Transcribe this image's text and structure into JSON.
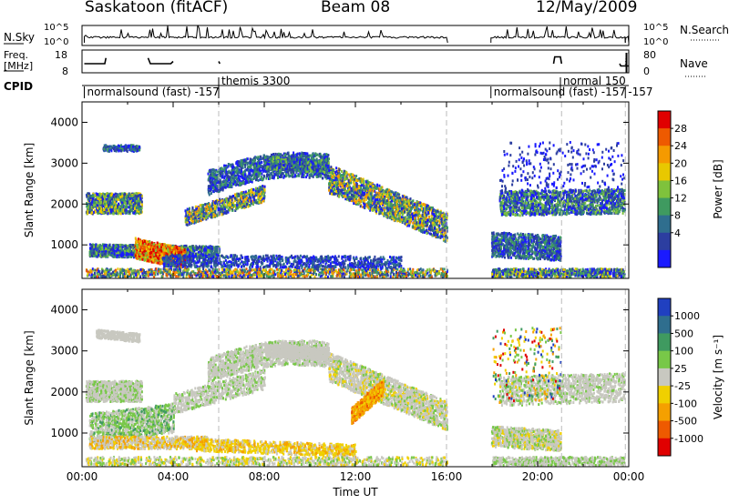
{
  "header": {
    "station": "Saskatoon (fitACF)",
    "beam": "Beam 08",
    "date": "12/May/2009"
  },
  "chart_data": [
    {
      "type": "line",
      "name": "sky-noise-panel",
      "left_label": [
        "N.Sky"
      ],
      "right_label": [
        "N.Search"
      ],
      "left_ticks": [
        "10^5",
        "10^0"
      ],
      "right_ticks": [
        "10^5",
        "10^0"
      ],
      "segments_hours": [
        [
          0.1,
          16.05
        ],
        [
          17.95,
          23.85
        ],
        [
          23.85,
          24.0
        ]
      ]
    },
    {
      "type": "line",
      "name": "frequency-panel",
      "left_label": [
        "Freq.",
        "[MHz]"
      ],
      "right_label": [
        "Nave"
      ],
      "left_ticks": [
        "18",
        "8"
      ],
      "right_ticks": [
        "80",
        "0"
      ],
      "freq_mhz": [
        {
          "t": 0.1,
          "v": 12
        },
        {
          "t": 1.0,
          "v": 12
        },
        {
          "t": 1.05,
          "v": 14.5
        },
        {
          "t": 2.9,
          "v": 14.5
        },
        {
          "t": 3.0,
          "v": 12
        },
        {
          "t": 3.9,
          "v": 12
        },
        {
          "t": 4.0,
          "v": 13
        },
        {
          "t": 6.0,
          "v": 13
        },
        {
          "t": 6.05,
          "v": 12
        },
        {
          "t": 16.05,
          "v": 12
        },
        {
          "t": 17.95,
          "v": 12
        },
        {
          "t": 20.7,
          "v": 12
        },
        {
          "t": 20.75,
          "v": 15
        },
        {
          "t": 21.0,
          "v": 15
        },
        {
          "t": 21.05,
          "v": 12
        },
        {
          "t": 23.6,
          "v": 12
        },
        {
          "t": 23.65,
          "v": 11
        },
        {
          "t": 24.0,
          "v": 11
        }
      ],
      "nave": [
        {
          "t": 0.1,
          "v": 28
        },
        {
          "t": 16.05,
          "v": 28
        },
        {
          "t": 17.95,
          "v": 28
        },
        {
          "t": 23.85,
          "v": 28
        },
        {
          "t": 23.9,
          "v": 70
        },
        {
          "t": 24.0,
          "v": 70
        }
      ]
    },
    {
      "type": "table",
      "name": "cpid-panel",
      "label": "CPID",
      "programs": [
        {
          "start": 0.1,
          "name": "normalsound (fast)",
          "cpid": "-157",
          "row": "lower"
        },
        {
          "start": 6.0,
          "name": "themis",
          "cpid": "3300",
          "row": "upper"
        },
        {
          "start": 17.95,
          "name": "normalsound (fast)",
          "cpid": "-157",
          "row": "lower"
        },
        {
          "start": 21.0,
          "name": "normal",
          "cpid": "150",
          "row": "upper"
        },
        {
          "start": 23.85,
          "name": "",
          "cpid": "-157",
          "row": "lower"
        }
      ]
    },
    {
      "type": "heatmap",
      "name": "power-panel",
      "ylabel": "Slant Range [km]",
      "y_ticks": [
        1000,
        2000,
        3000,
        4000
      ],
      "ylim": [
        180,
        4500
      ],
      "xlim": [
        0,
        24
      ],
      "colorbar_label": "Power [dB]",
      "colorbar_ticks": [
        "28",
        "24",
        "20",
        "16",
        "12",
        "8",
        "4"
      ],
      "colors": [
        "#1a1aff",
        "#2c3ea0",
        "#2f6e8e",
        "#3f9a60",
        "#7fc23c",
        "#e8c800",
        "#f59a00",
        "#ee5a00",
        "#e00000"
      ],
      "gaps_hours": [
        [
          16.05,
          17.95
        ],
        [
          23.85,
          23.92
        ]
      ],
      "vlines_hours": [
        6.0,
        16.0,
        21.05,
        23.85
      ]
    },
    {
      "type": "heatmap",
      "name": "velocity-panel",
      "ylabel": "Slant Range [km]",
      "y_ticks": [
        1000,
        2000,
        3000,
        4000
      ],
      "ylim": [
        180,
        4500
      ],
      "xlim": [
        0,
        24
      ],
      "xlabel": "Time UT",
      "x_ticks": [
        "00:00",
        "04:00",
        "08:00",
        "12:00",
        "16:00",
        "20:00",
        "00:00"
      ],
      "colorbar_label": "Velocity [m s⁻¹]",
      "colorbar_ticks": [
        "1000",
        "500",
        "100",
        "25",
        "-25",
        "-100",
        "-500",
        "-1000"
      ],
      "colors": [
        "#2040c0",
        "#2f6e8e",
        "#3f9a60",
        "#78c848",
        "#c8c8c0",
        "#f0d000",
        "#f5a000",
        "#ee5a00",
        "#e00000"
      ],
      "gaps_hours": [
        [
          16.05,
          17.95
        ],
        [
          23.85,
          23.92
        ]
      ],
      "vlines_hours": [
        6.0,
        16.0,
        21.05,
        23.85
      ]
    }
  ]
}
